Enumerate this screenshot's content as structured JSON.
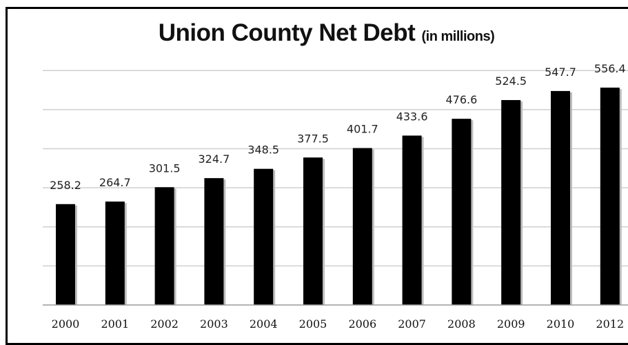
{
  "chart_data": {
    "type": "bar",
    "title": "Union County Net Debt",
    "subtitle": "(in millions)",
    "xlabel": "",
    "ylabel": "",
    "categories": [
      "2000",
      "2001",
      "2002",
      "2003",
      "2004",
      "2005",
      "2006",
      "2007",
      "2008",
      "2009",
      "2010",
      "2012"
    ],
    "values": [
      258.2,
      264.7,
      301.5,
      324.7,
      348.5,
      377.5,
      401.7,
      433.6,
      476.6,
      524.5,
      547.7,
      556.4
    ],
    "data_labels": [
      "258.2",
      "264.7",
      "301.5",
      "324.7",
      "348.5",
      "377.5",
      "401.7",
      "433.6",
      "476.6",
      "524.5",
      "547.7",
      "556.4"
    ],
    "ylim": [
      0,
      600
    ],
    "grid": true,
    "bar_color": "#000000",
    "grid_color": "#cfcfcf"
  }
}
